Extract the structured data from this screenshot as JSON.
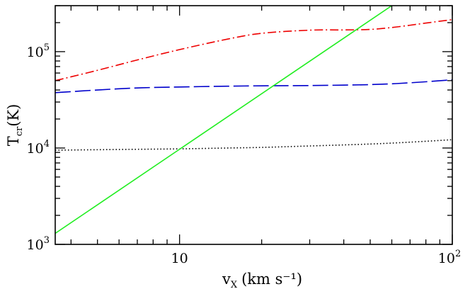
{
  "chart_data": {
    "type": "line",
    "title": "",
    "xlabel": "v",
    "xlabel_sub": "X",
    "xlabel_units": "(km s⁻¹)",
    "ylabel": "T",
    "ylabel_sub": "cr",
    "ylabel_units": "(K)",
    "xscale": "log",
    "yscale": "log",
    "xlim": [
      3.5,
      100
    ],
    "ylim": [
      1000,
      300000
    ],
    "grid": false,
    "legend": "none",
    "x_ticks": [
      {
        "value": 10,
        "base": "10",
        "exp": ""
      },
      {
        "value": 100,
        "base": "10",
        "exp": "2"
      }
    ],
    "y_ticks": [
      {
        "value": 1000,
        "base": "10",
        "exp": "3"
      },
      {
        "value": 10000,
        "base": "10",
        "exp": "4"
      },
      {
        "value": 100000,
        "base": "10",
        "exp": "5"
      }
    ],
    "series": [
      {
        "style": "dotted",
        "color": "#000000",
        "x": [
          3.5,
          5,
          7,
          10,
          15,
          20,
          30,
          50,
          70,
          100
        ],
        "y": [
          9500,
          9600,
          9700,
          9800,
          10000,
          10150,
          10500,
          11000,
          11500,
          12200
        ]
      },
      {
        "style": "long-dash",
        "color": "#0000cc",
        "x": [
          3.5,
          5,
          7,
          10,
          15,
          20,
          30,
          50,
          70,
          100
        ],
        "y": [
          37500,
          40000,
          42000,
          43000,
          43800,
          44200,
          44500,
          45500,
          47500,
          51000
        ]
      },
      {
        "style": "dash-dot",
        "color": "#ee0000",
        "x": [
          3.5,
          5,
          7,
          10,
          15,
          20,
          30,
          40,
          50,
          60,
          70,
          80,
          100
        ],
        "y": [
          50000,
          64000,
          82000,
          105000,
          135000,
          155000,
          167000,
          168000,
          170000,
          178000,
          188000,
          198000,
          215000
        ]
      },
      {
        "style": "solid",
        "color": "#22ee22",
        "x": [
          3.5,
          60
        ],
        "y": [
          1300,
          300000
        ]
      }
    ]
  }
}
